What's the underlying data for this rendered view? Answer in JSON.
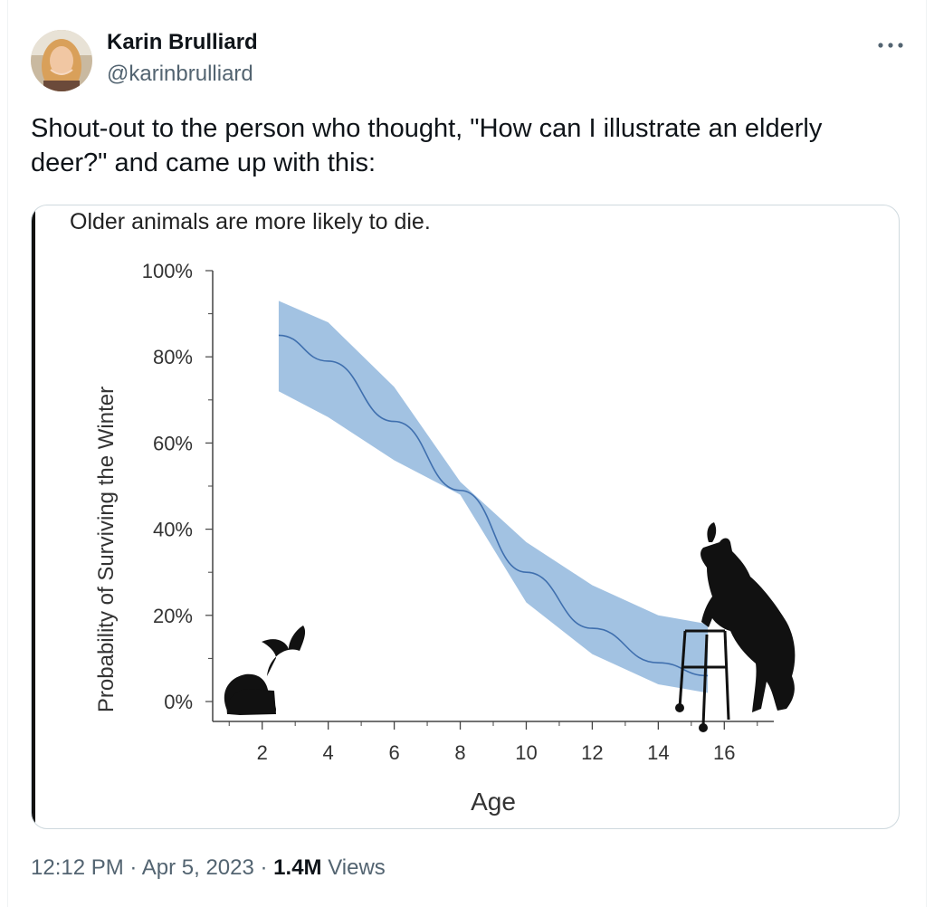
{
  "author": {
    "name": "Karin Brulliard",
    "handle": "@karinbrulliard",
    "avatar_icon": "avatar-photo"
  },
  "more_icon": "ellipsis-icon",
  "tweet": {
    "text": "Shout-out to the person who thought, \"How can I illustrate an elderly deer?\" and came up with this:"
  },
  "meta": {
    "time": "12:12 PM",
    "sep1": " · ",
    "date": "Apr 5, 2023",
    "sep2": " · ",
    "views_count": "1.4M",
    "views_label": " Views"
  },
  "chart_data": {
    "type": "line",
    "title": "Older animals are more likely to die.",
    "xlabel": "Age",
    "ylabel": "Probability of Surviving the Winter",
    "xlim": [
      0.5,
      17.5
    ],
    "ylim": [
      0,
      100
    ],
    "x_ticks": [
      2,
      4,
      6,
      8,
      10,
      12,
      14,
      16
    ],
    "y_ticks": [
      0,
      20,
      40,
      60,
      80,
      100
    ],
    "y_tick_labels": [
      "0%",
      "20%",
      "40%",
      "60%",
      "80%",
      "100%"
    ],
    "series": [
      {
        "x": [
          2.5,
          4,
          6,
          8,
          10,
          12,
          14,
          15.5
        ],
        "y": [
          85,
          79,
          65,
          49,
          30,
          17,
          9,
          6
        ],
        "lower": [
          72,
          66,
          56,
          48,
          23,
          11,
          4,
          2
        ],
        "upper": [
          93,
          88,
          73,
          51,
          37,
          27,
          20,
          18
        ]
      }
    ],
    "colors": {
      "band": "#9dbfe0",
      "line": "#3f6fae",
      "axis": "#444444"
    },
    "illustrations": [
      "fawn-silhouette",
      "elderly-deer-with-walker-silhouette"
    ]
  }
}
